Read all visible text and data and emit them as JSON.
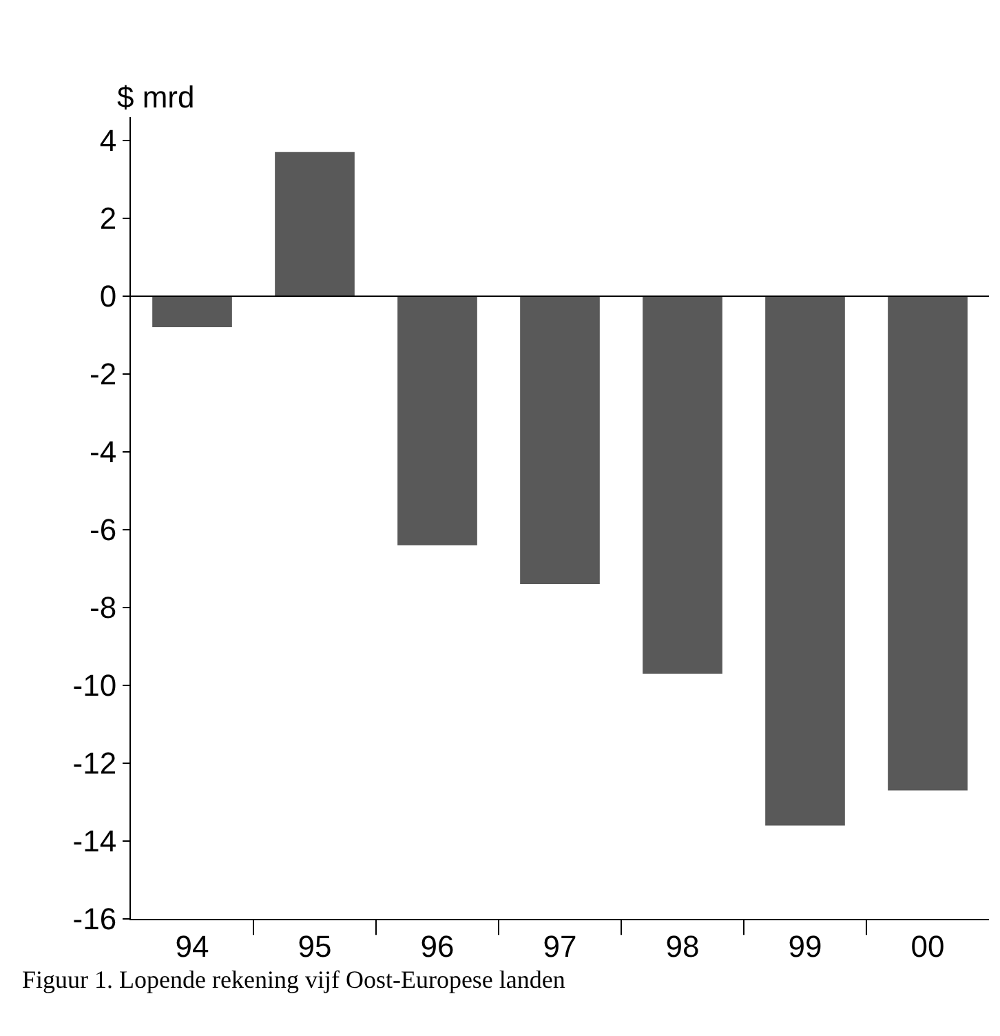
{
  "chart_data": {
    "type": "bar",
    "ylabel": "$ mrd",
    "categories": [
      "94",
      "95",
      "96",
      "97",
      "98",
      "99",
      "00"
    ],
    "values": [
      -0.8,
      3.7,
      -6.4,
      -7.4,
      -9.7,
      -13.6,
      -12.7
    ],
    "color": "#595959",
    "ylim": [
      -16,
      4.6
    ],
    "yticks": [
      4,
      2,
      0,
      -2,
      -4,
      -6,
      -8,
      -10,
      -12,
      -14,
      -16
    ],
    "ref_lines": [
      {
        "axis": "y",
        "value": 0,
        "color": "#000000"
      }
    ],
    "legend": false,
    "annotations": [
      "Figuur 1. Lopende rekening vijf Oost-Europese landen"
    ]
  }
}
